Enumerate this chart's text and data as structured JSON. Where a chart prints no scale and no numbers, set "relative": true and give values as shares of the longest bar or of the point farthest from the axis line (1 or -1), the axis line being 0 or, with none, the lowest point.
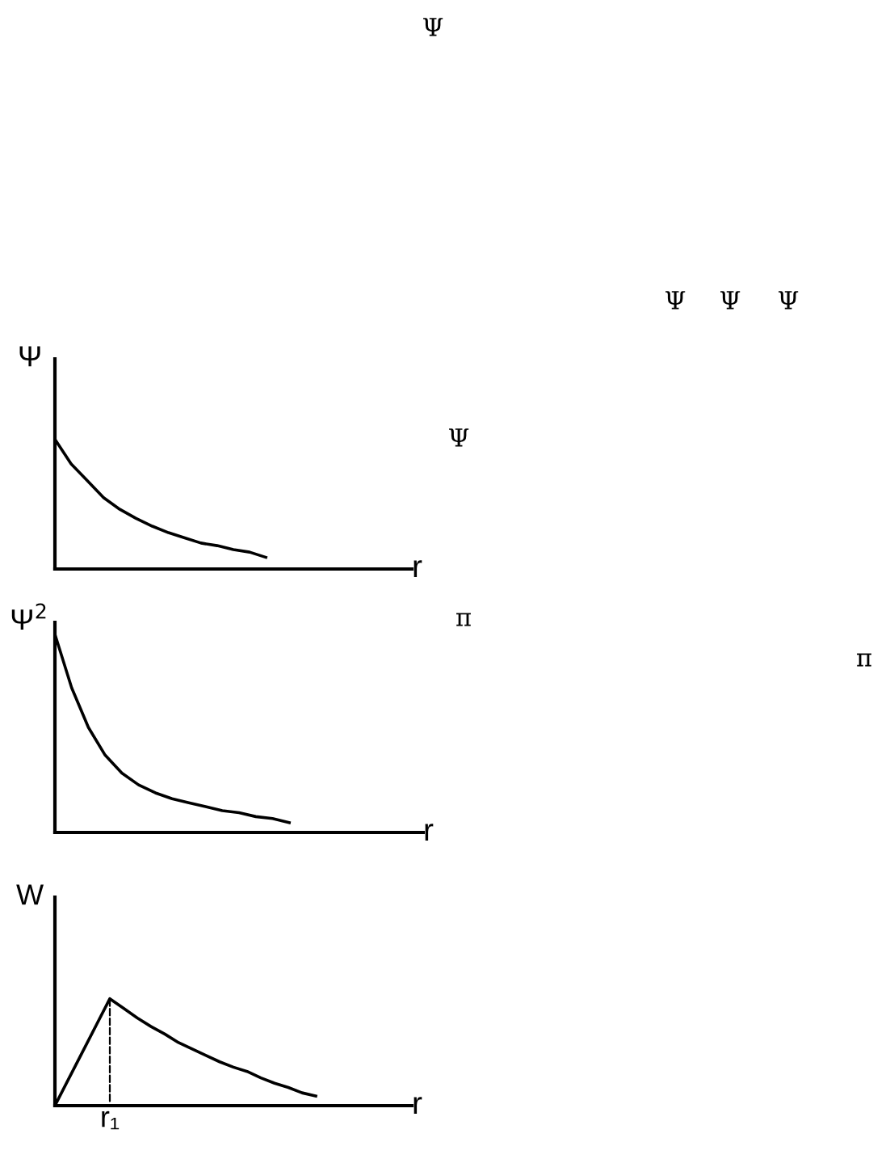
{
  "chart_data": [
    {
      "type": "line",
      "relative": true,
      "ylabel": "Ψ",
      "xlabel": "r",
      "color": "#000000",
      "categories": [
        null,
        null,
        null,
        null,
        null,
        null,
        null,
        null,
        null,
        null,
        null,
        null,
        null,
        null,
        null,
        null,
        null,
        null,
        null,
        null,
        null,
        null,
        null
      ],
      "values": [
        1.0,
        0.81,
        0.68,
        0.55,
        0.46,
        0.39,
        0.33,
        0.28,
        0.24,
        0.2,
        0.18,
        0.15,
        0.13,
        0.09,
        null,
        null,
        null,
        null,
        null,
        null,
        null,
        null,
        null
      ]
    },
    {
      "type": "line",
      "relative": true,
      "ylabel": "Ψ$^{2}$",
      "xlabel": "r",
      "color": "#000000",
      "categories": [
        null,
        null,
        null,
        null,
        null,
        null,
        null,
        null,
        null,
        null,
        null,
        null,
        null,
        null,
        null,
        null,
        null,
        null,
        null,
        null,
        null,
        null,
        null
      ],
      "values": [
        1.0,
        0.73,
        0.53,
        0.39,
        0.3,
        0.24,
        0.2,
        0.17,
        0.15,
        0.13,
        0.11,
        0.1,
        0.08,
        0.07,
        0.05,
        null,
        null,
        null,
        null,
        null,
        null,
        null,
        null
      ]
    },
    {
      "type": "line",
      "relative": true,
      "ylabel": "W",
      "xlabel": "r",
      "color": "#000000",
      "categories": [
        null,
        null,
        null,
        null,
        null,
        null,
        null,
        null,
        null,
        null,
        null,
        null,
        null,
        null,
        null,
        null,
        null,
        null,
        null,
        null,
        null,
        null,
        null,
        null,
        null,
        null,
        null
      ],
      "values": [
        0,
        0.25,
        0.5,
        0.75,
        1.0,
        0.91,
        0.82,
        0.74,
        0.67,
        0.59,
        0.53,
        0.47,
        0.41,
        0.36,
        0.32,
        0.26,
        0.21,
        0.17,
        0.12,
        0.09,
        null,
        null,
        null,
        null,
        null,
        null,
        null
      ],
      "annotations": [
        {
          "text": "r₁",
          "y": 1.0
        }
      ]
    },
    {
      "type": "other",
      "annotations": [
        "Ψ",
        "Ψ",
        "Ψ",
        "Ψ",
        "Ψ",
        "π",
        "π"
      ]
    }
  ]
}
